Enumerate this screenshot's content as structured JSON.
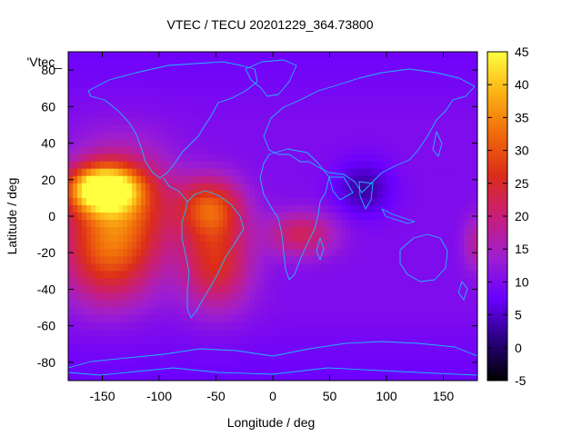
{
  "chart_data": {
    "type": "heatmap",
    "title": "VTEC / TECU 20201229_364.73800",
    "xlabel": "Longitude / deg",
    "ylabel": "Latitude / deg",
    "xlim": [
      -180,
      180
    ],
    "ylim": [
      -90,
      90
    ],
    "x_ticks": [
      -150,
      -100,
      -50,
      0,
      50,
      100,
      150
    ],
    "y_ticks": [
      -80,
      -60,
      -40,
      -20,
      0,
      20,
      40,
      60,
      80
    ],
    "legend_label": "'Vtec_",
    "colorbar": {
      "range": [
        -5,
        45
      ],
      "ticks": [
        -5,
        0,
        5,
        10,
        15,
        20,
        25,
        30,
        35,
        40,
        45
      ],
      "palette": [
        "#000000",
        "#2a0080",
        "#6a00ff",
        "#9e1fd0",
        "#c81e78",
        "#dc2c1a",
        "#f06a0a",
        "#fcb214",
        "#ffff40"
      ]
    },
    "peaks": [
      {
        "lon": -150,
        "lat": 15,
        "value": 42,
        "rx": 30,
        "ry": 12
      },
      {
        "lon": -135,
        "lat": 5,
        "value": 30,
        "rx": 45,
        "ry": 30
      },
      {
        "lon": -145,
        "lat": -25,
        "value": 24,
        "rx": 40,
        "ry": 25
      },
      {
        "lon": -55,
        "lat": 5,
        "value": 28,
        "rx": 28,
        "ry": 16
      },
      {
        "lon": -50,
        "lat": -25,
        "value": 26,
        "rx": 30,
        "ry": 25
      },
      {
        "lon": 25,
        "lat": -10,
        "value": 22,
        "rx": 30,
        "ry": 12
      },
      {
        "lon": 180,
        "lat": -15,
        "value": 18,
        "rx": 12,
        "ry": 15
      }
    ],
    "background_value": 10,
    "trough": {
      "lon": 80,
      "lat": 15,
      "value": 3,
      "rx": 25,
      "ry": 15
    }
  }
}
